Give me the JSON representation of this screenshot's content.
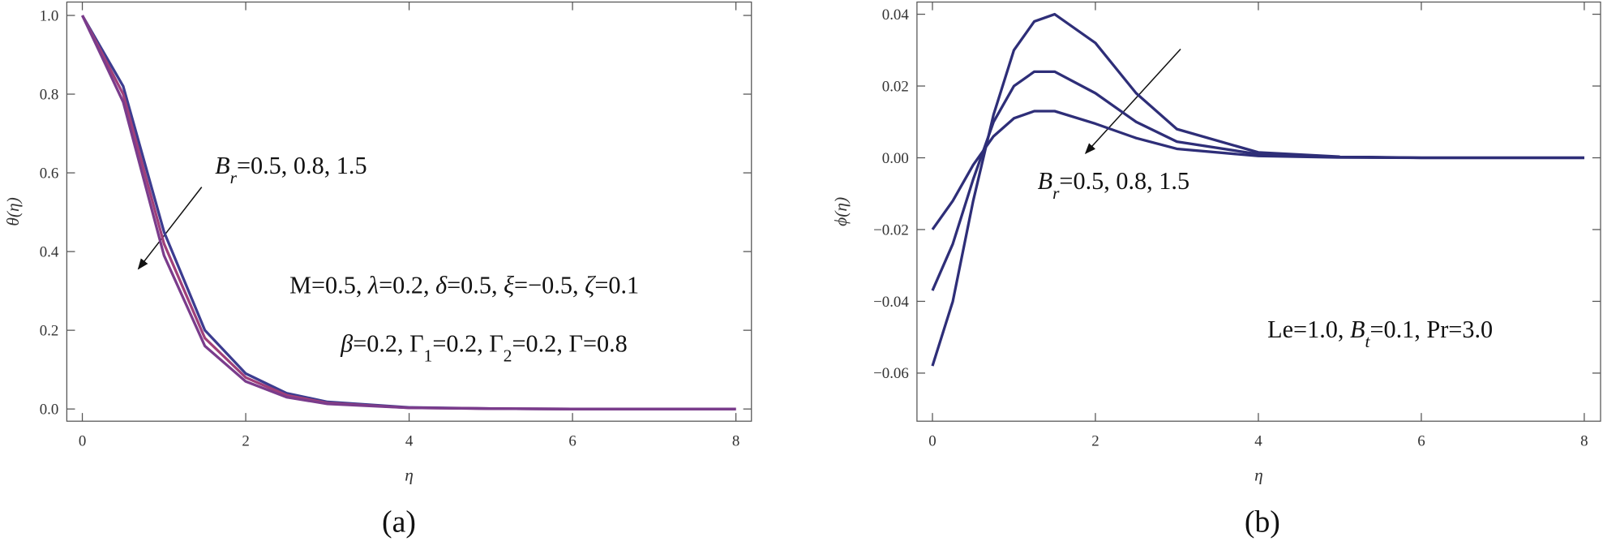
{
  "chart_data": [
    {
      "type": "line",
      "caption": "(a)",
      "xlabel": "η",
      "ylabel": "θ(η)",
      "x": [
        0,
        0.5,
        1,
        1.5,
        2,
        2.5,
        3,
        4,
        5,
        6,
        7,
        8
      ],
      "series": [
        {
          "color": "#3c3c90",
          "values": [
            1,
            0.82,
            0.45,
            0.2,
            0.09,
            0.04,
            0.018,
            0.004,
            0.001,
            0,
            0,
            0
          ]
        },
        {
          "color": "#a0407a",
          "values": [
            1,
            0.8,
            0.42,
            0.18,
            0.08,
            0.035,
            0.015,
            0.003,
            0.001,
            0,
            0,
            0
          ]
        },
        {
          "color": "#7a3c8c",
          "values": [
            1,
            0.78,
            0.39,
            0.16,
            0.07,
            0.03,
            0.013,
            0.003,
            0.001,
            0,
            0,
            0
          ]
        }
      ],
      "xlim": [
        -0.19,
        8.19
      ],
      "ylim": [
        -0.031,
        1.034
      ],
      "xticks": [
        0,
        2,
        4,
        6,
        8
      ],
      "yticks": [
        {
          "value": 0,
          "label": "0.0"
        },
        {
          "value": 0.2,
          "label": "0.2"
        },
        {
          "value": 0.4,
          "label": "0.4"
        },
        {
          "value": 0.6,
          "label": "0.6"
        },
        {
          "value": 0.8,
          "label": "0.8"
        },
        {
          "value": 1,
          "label": "1.0"
        }
      ],
      "annotations": [
        [
          {
            "text": "B",
            "italic": true
          },
          {
            "text": "r",
            "italic": true,
            "sub": true
          },
          {
            "text": "=0.5, 0.8, 1.5"
          }
        ],
        [
          {
            "text": "M=0.5, "
          },
          {
            "text": "λ",
            "italic": true
          },
          {
            "text": "=0.2, "
          },
          {
            "text": "δ",
            "italic": true
          },
          {
            "text": "=0.5, "
          },
          {
            "text": "ξ",
            "italic": true
          },
          {
            "text": "=−0.5, "
          },
          {
            "text": "ζ",
            "italic": true
          },
          {
            "text": "=0.1"
          }
        ],
        [
          {
            "text": "β",
            "italic": true
          },
          {
            "text": "=0.2, Γ"
          },
          {
            "text": "1",
            "sub": true
          },
          {
            "text": "=0.2, Γ"
          },
          {
            "text": "2",
            "sub": true
          },
          {
            "text": "=0.2, Γ=0.8"
          }
        ]
      ]
    },
    {
      "type": "line",
      "caption": "(b)",
      "xlabel": "η",
      "ylabel": "ϕ(η)",
      "x": [
        0,
        0.25,
        0.5,
        0.75,
        1,
        1.25,
        1.5,
        2,
        2.5,
        3,
        4,
        5,
        6,
        8
      ],
      "series": [
        {
          "color": "#2e2e78",
          "values": [
            -0.058,
            -0.04,
            -0.012,
            0.012,
            0.03,
            0.038,
            0.04,
            0.032,
            0.018,
            0.008,
            0.0015,
            0.0003,
            0,
            0
          ]
        },
        {
          "color": "#2e2e78",
          "values": [
            -0.037,
            -0.024,
            -0.006,
            0.01,
            0.02,
            0.024,
            0.024,
            0.018,
            0.01,
            0.0045,
            0.001,
            0.0002,
            0,
            0
          ]
        },
        {
          "color": "#2e2e78",
          "values": [
            -0.02,
            -0.012,
            -0.002,
            0.006,
            0.011,
            0.013,
            0.013,
            0.0095,
            0.0055,
            0.0025,
            0.0005,
            0.0001,
            0,
            0
          ]
        }
      ],
      "xlim": [
        -0.19,
        8.2
      ],
      "ylim": [
        -0.0734,
        0.0434
      ],
      "xticks": [
        0,
        2,
        4,
        6,
        8
      ],
      "yticks": [
        {
          "value": -0.06,
          "label": "−0.06"
        },
        {
          "value": -0.04,
          "label": "−0.04"
        },
        {
          "value": -0.02,
          "label": "−0.02"
        },
        {
          "value": 0,
          "label": "0.00"
        },
        {
          "value": 0.02,
          "label": "0.02"
        },
        {
          "value": 0.04,
          "label": "0.04"
        }
      ],
      "annotations": [
        [
          {
            "text": "B",
            "italic": true
          },
          {
            "text": "r",
            "italic": true,
            "sub": true
          },
          {
            "text": "=0.5, 0.8, 1.5"
          }
        ],
        [
          {
            "text": "Le=1.0, "
          },
          {
            "text": "B",
            "italic": true
          },
          {
            "text": "t",
            "italic": true,
            "sub": true
          },
          {
            "text": "=0.1, Pr=3.0"
          }
        ]
      ]
    }
  ]
}
